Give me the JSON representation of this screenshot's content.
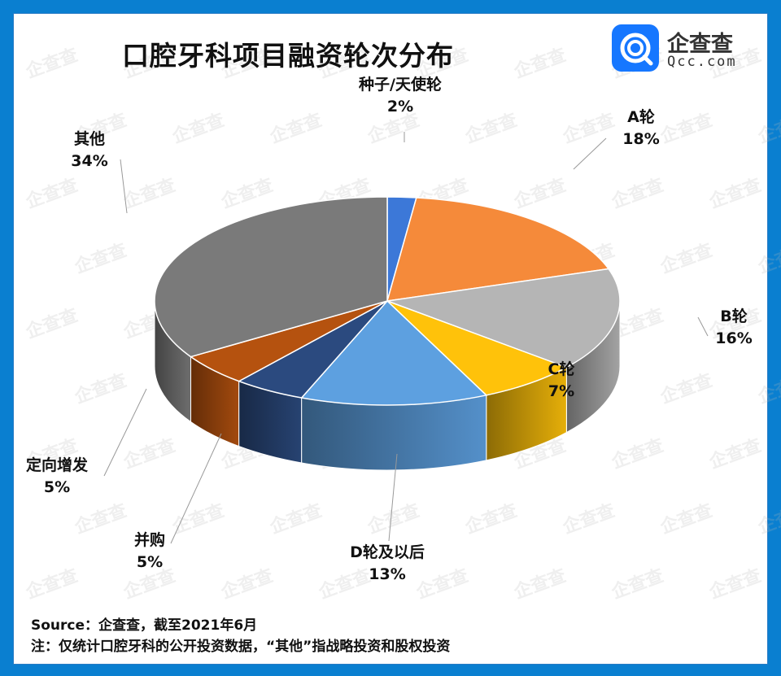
{
  "header": {
    "title": "口腔牙科项目融资轮次分布"
  },
  "logo": {
    "name": "企查查",
    "domain": "Qcc.com",
    "color": "#1677ff"
  },
  "watermark_text": "企查查",
  "footer": {
    "source": "Source：企查查，截至2021年6月",
    "note": "注：仅统计口腔牙科的公开投资数据，“其他”指战略投资和股权投资"
  },
  "chart_data": {
    "type": "pie",
    "style": "3d",
    "title": "口腔牙科项目融资轮次分布",
    "slices": [
      {
        "label": "种子/天使轮",
        "value": 2,
        "display": "2%",
        "color": "#3c78d8"
      },
      {
        "label": "A轮",
        "value": 18,
        "display": "18%",
        "color": "#f58a3a"
      },
      {
        "label": "B轮",
        "value": 16,
        "display": "16%",
        "color": "#b5b5b5"
      },
      {
        "label": "C轮",
        "value": 7,
        "display": "7%",
        "color": "#ffc20a"
      },
      {
        "label": "D轮及以后",
        "value": 13,
        "display": "13%",
        "color": "#5da0e0"
      },
      {
        "label": "并购",
        "value": 5,
        "display": "5%",
        "color": "#2b4a7f"
      },
      {
        "label": "定向增发",
        "value": 5,
        "display": "5%",
        "color": "#b5520f"
      },
      {
        "label": "其他",
        "value": 34,
        "display": "34%",
        "color": "#7a7a7a"
      }
    ]
  }
}
